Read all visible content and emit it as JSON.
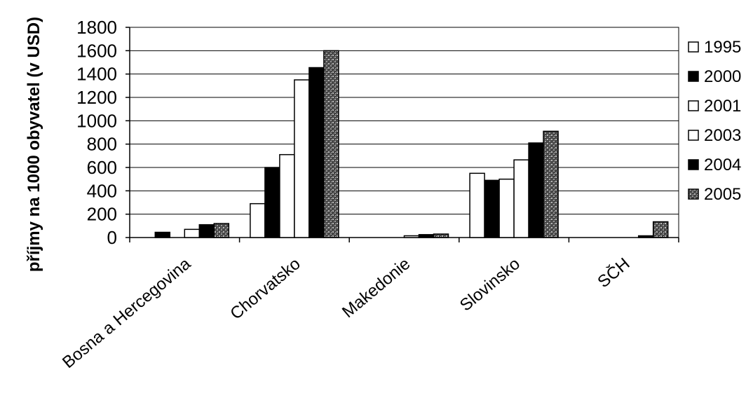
{
  "chart_data": {
    "type": "bar",
    "title": "",
    "xlabel": "",
    "ylabel": "příjmy na 1000 obyvatel (v USD)",
    "ylim": [
      0,
      1800
    ],
    "yticks": [
      0,
      200,
      400,
      600,
      800,
      1000,
      1200,
      1400,
      1600,
      1800
    ],
    "grid": true,
    "legend_position": "right",
    "categories": [
      "Bosna a Hercegovina",
      "Chorvatsko",
      "Makedonie",
      "Slovinsko",
      "SČH"
    ],
    "series": [
      {
        "name": "1995",
        "fill": "white",
        "values": [
          0,
          290,
          0,
          550,
          0
        ]
      },
      {
        "name": "2000",
        "fill": "black",
        "values": [
          45,
          600,
          0,
          490,
          0
        ]
      },
      {
        "name": "2001",
        "fill": "white",
        "values": [
          0,
          710,
          0,
          500,
          0
        ]
      },
      {
        "name": "2003",
        "fill": "white",
        "values": [
          70,
          1350,
          15,
          665,
          0
        ]
      },
      {
        "name": "2004",
        "fill": "black",
        "values": [
          110,
          1455,
          25,
          810,
          15
        ]
      },
      {
        "name": "2005",
        "fill": "speckled",
        "values": [
          120,
          1600,
          30,
          910,
          135
        ]
      }
    ]
  },
  "colors": {
    "black": "#000000",
    "white": "#ffffff",
    "speckled_base": "#555555",
    "grid": "#000000"
  }
}
